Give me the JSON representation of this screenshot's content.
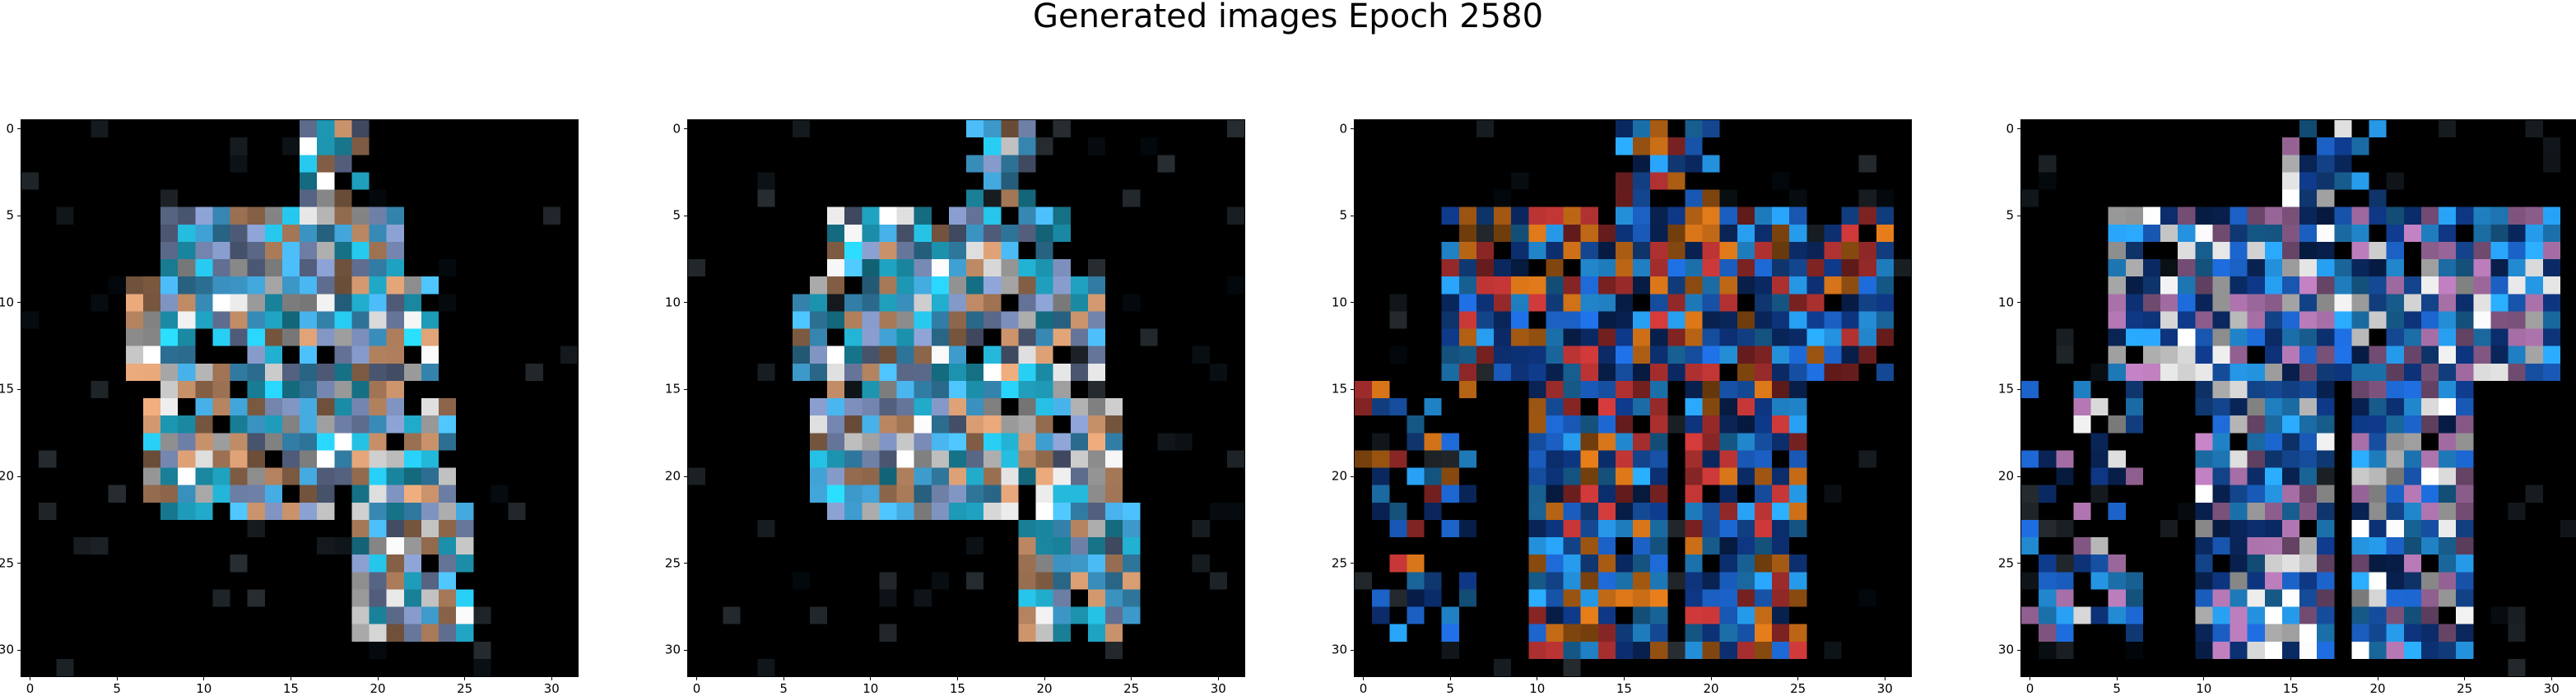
{
  "figure": {
    "title": "Generated images Epoch 2580",
    "x_ticks": [
      "0",
      "5",
      "10",
      "15",
      "20",
      "25",
      "30"
    ],
    "y_ticks": [
      "0",
      "5",
      "10",
      "15",
      "20",
      "25",
      "30"
    ],
    "image_resolution": [
      32,
      32
    ],
    "background_color": "#000000",
    "panels": [
      {
        "id": "image-1",
        "dominant_colors": [
          "#2ad7ff",
          "#8a9fd0",
          "#ffffff",
          "#e6a77a",
          "#4ec2ff"
        ]
      },
      {
        "id": "image-2",
        "dominant_colors": [
          "#2ad7ff",
          "#8a9fd0",
          "#ffffff",
          "#e6a77a",
          "#4ec2ff"
        ]
      },
      {
        "id": "image-3",
        "dominant_colors": [
          "#1f6ee0",
          "#2aa8ff",
          "#0f3a8a",
          "#e07a1a",
          "#d03a3a"
        ]
      },
      {
        "id": "image-4",
        "dominant_colors": [
          "#1f6ee0",
          "#2aa8ff",
          "#0f3a8a",
          "#c080c0",
          "#ffffff"
        ]
      }
    ]
  }
}
